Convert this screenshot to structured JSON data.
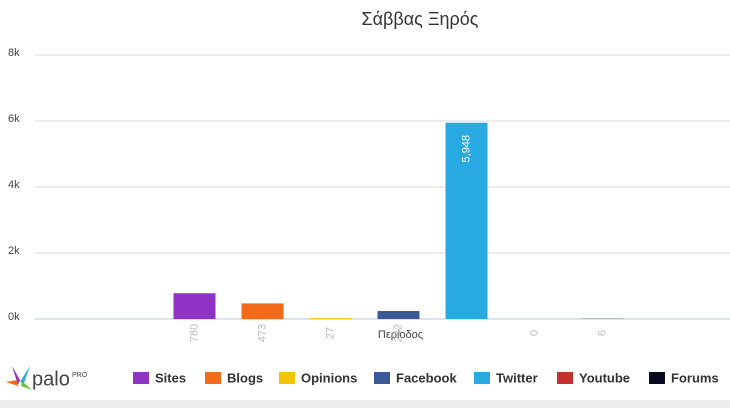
{
  "chart_data": {
    "type": "bar",
    "title": "Σάββας Ξηρός",
    "categories": [
      "Περίοδος"
    ],
    "series": [
      {
        "name": "Sites",
        "color": "#8e33c4",
        "values": [
          780
        ]
      },
      {
        "name": "Blogs",
        "color": "#f26a1b",
        "values": [
          473
        ]
      },
      {
        "name": "Opinions",
        "color": "#f5c400",
        "values": [
          27
        ]
      },
      {
        "name": "Facebook",
        "color": "#3b5998",
        "values": [
          242
        ]
      },
      {
        "name": "Twitter",
        "color": "#29a9e1",
        "values": [
          5948
        ],
        "value_labels": [
          "5,948"
        ]
      },
      {
        "name": "Youtube",
        "color": "#c4302b",
        "values": [
          0
        ]
      },
      {
        "name": "Forums",
        "color": "#0b0b1f",
        "values": [
          6
        ]
      }
    ],
    "ylim": [
      0,
      8000
    ],
    "yticks": [
      {
        "value": 0,
        "label": "0k"
      },
      {
        "value": 2000,
        "label": "2k"
      },
      {
        "value": 4000,
        "label": "4k"
      },
      {
        "value": 6000,
        "label": "6k"
      },
      {
        "value": 8000,
        "label": "8k"
      }
    ],
    "grid": true,
    "legend": "bottom"
  },
  "logo": {
    "text": "palo",
    "badge": "PRO"
  }
}
